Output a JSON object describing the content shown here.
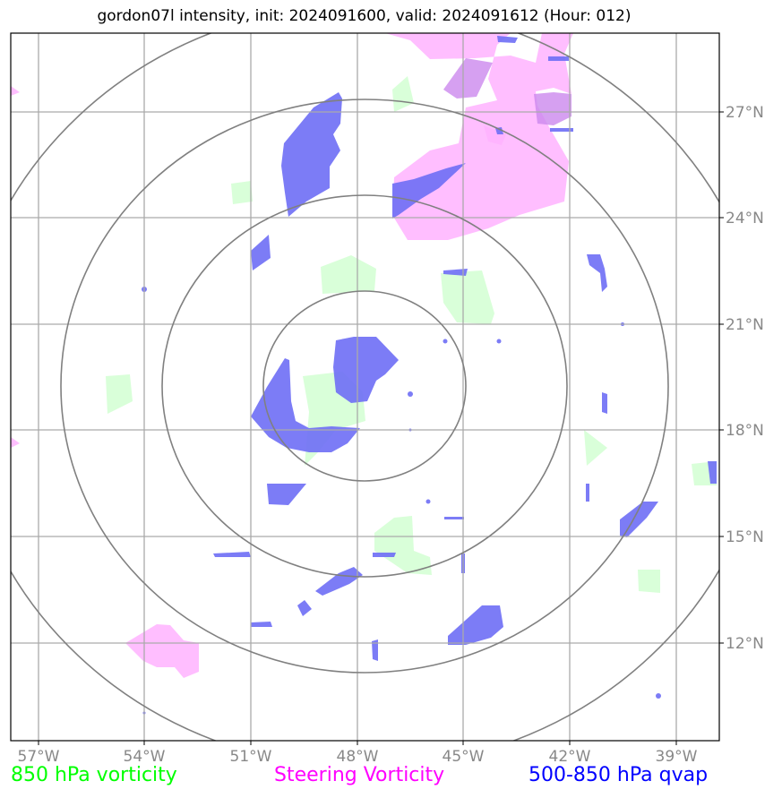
{
  "title": "gordon07l intensity, init: 2024091600, valid: 2024091612 (Hour: 012)",
  "lat_labels": [
    "27°N",
    "24°N",
    "21°N",
    "18°N",
    "15°N",
    "12°N"
  ],
  "lon_labels": [
    "57°W",
    "54°W",
    "51°W",
    "48°W",
    "45°W",
    "42°W",
    "39°W"
  ],
  "legend": [
    {
      "label": "850 hPa vorticity",
      "color": "#00ff00"
    },
    {
      "label": "Steering Vorticity",
      "color": "#ff00ff"
    },
    {
      "label": "500-850 hPa qvap",
      "color": "#0000ff"
    }
  ],
  "colors": {
    "vorticity850": "#ccffcc",
    "steering": "#ffb3ff",
    "qvap": "#6e6ef5",
    "grid": "#aaaaaa",
    "rings": "#808080",
    "labels": "#888888"
  }
}
